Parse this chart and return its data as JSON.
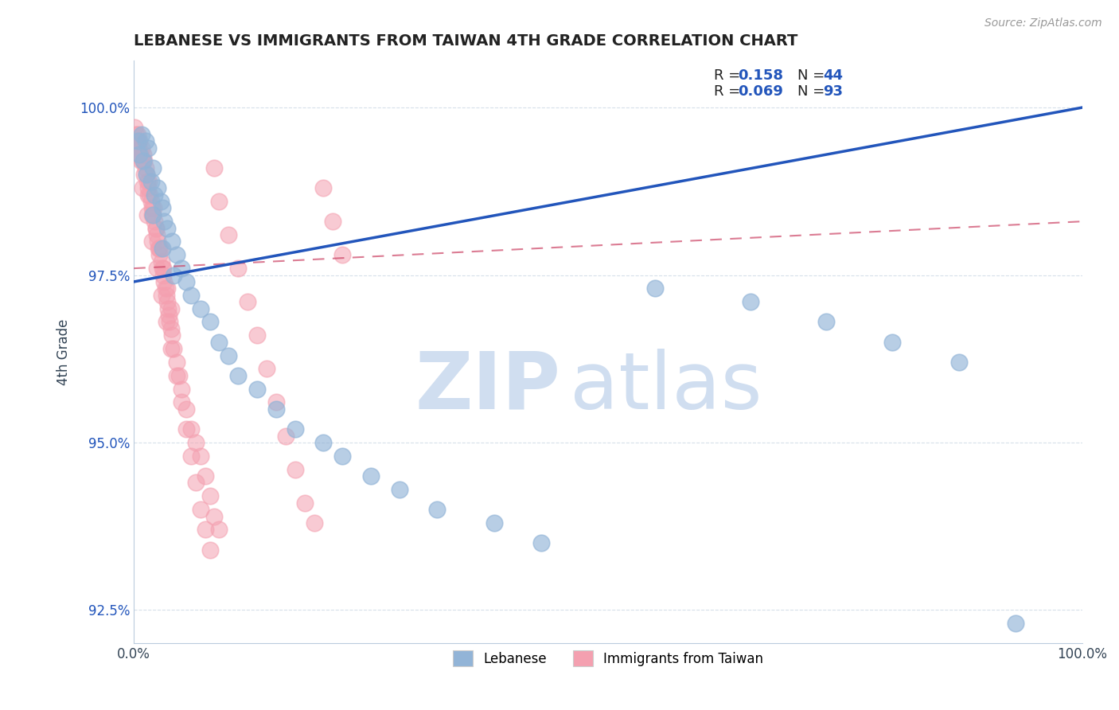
{
  "title": "LEBANESE VS IMMIGRANTS FROM TAIWAN 4TH GRADE CORRELATION CHART",
  "source_text": "Source: ZipAtlas.com",
  "ylabel": "4th Grade",
  "xlim": [
    0,
    100
  ],
  "ylim": [
    92.0,
    100.7
  ],
  "yticks": [
    92.5,
    95.0,
    97.5,
    100.0
  ],
  "xticks": [
    0,
    100
  ],
  "xticklabels": [
    "0.0%",
    "100.0%"
  ],
  "yticklabels": [
    "92.5%",
    "95.0%",
    "97.5%",
    "100.0%"
  ],
  "blue_color": "#92B4D7",
  "pink_color": "#F4A0B0",
  "trend_blue_color": "#2255BB",
  "trend_pink_color": "#CC4466",
  "watermark_zip": "ZIP",
  "watermark_atlas": "atlas",
  "watermark_color": "#D0DEF0",
  "blue_scatter_x": [
    0.5,
    0.8,
    1.0,
    1.2,
    1.5,
    1.8,
    2.0,
    2.2,
    2.5,
    2.8,
    3.0,
    3.2,
    3.5,
    4.0,
    4.5,
    5.0,
    5.5,
    6.0,
    7.0,
    8.0,
    9.0,
    10.0,
    11.0,
    13.0,
    15.0,
    17.0,
    20.0,
    22.0,
    25.0,
    28.0,
    32.0,
    38.0,
    43.0,
    55.0,
    65.0,
    73.0,
    80.0,
    87.0,
    93.0,
    0.6,
    1.3,
    2.0,
    3.0,
    4.2
  ],
  "blue_scatter_y": [
    99.5,
    99.6,
    99.2,
    99.5,
    99.4,
    98.9,
    99.1,
    98.7,
    98.8,
    98.6,
    98.5,
    98.3,
    98.2,
    98.0,
    97.8,
    97.6,
    97.4,
    97.2,
    97.0,
    96.8,
    96.5,
    96.3,
    96.0,
    95.8,
    95.5,
    95.2,
    95.0,
    94.8,
    94.5,
    94.3,
    94.0,
    93.8,
    93.5,
    97.3,
    97.1,
    96.8,
    96.5,
    96.2,
    92.3,
    99.3,
    99.0,
    98.4,
    97.9,
    97.5
  ],
  "pink_scatter_x": [
    0.1,
    0.2,
    0.3,
    0.4,
    0.5,
    0.6,
    0.7,
    0.8,
    0.9,
    1.0,
    1.1,
    1.2,
    1.3,
    1.4,
    1.5,
    1.6,
    1.7,
    1.8,
    1.9,
    2.0,
    2.1,
    2.2,
    2.3,
    2.4,
    2.5,
    2.6,
    2.7,
    2.8,
    2.9,
    3.0,
    3.1,
    3.2,
    3.3,
    3.4,
    3.5,
    3.6,
    3.7,
    3.8,
    3.9,
    4.0,
    4.2,
    4.5,
    4.8,
    5.0,
    5.5,
    6.0,
    6.5,
    7.0,
    7.5,
    8.0,
    8.5,
    9.0,
    0.3,
    0.7,
    1.1,
    1.5,
    1.9,
    2.3,
    2.7,
    3.1,
    3.5,
    3.9,
    0.4,
    0.9,
    1.4,
    1.9,
    2.4,
    2.9,
    3.4,
    3.9,
    4.5,
    5.0,
    5.5,
    6.0,
    6.5,
    7.0,
    7.5,
    8.0,
    8.5,
    9.0,
    10.0,
    11.0,
    12.0,
    13.0,
    14.0,
    15.0,
    16.0,
    17.0,
    18.0,
    19.0,
    20.0,
    21.0,
    22.0
  ],
  "pink_scatter_y": [
    99.7,
    99.6,
    99.5,
    99.6,
    99.4,
    99.5,
    99.3,
    99.4,
    99.2,
    99.3,
    99.2,
    99.1,
    99.0,
    98.9,
    98.8,
    98.9,
    98.7,
    98.6,
    98.5,
    98.4,
    98.5,
    98.3,
    98.2,
    98.1,
    98.0,
    97.9,
    97.8,
    97.9,
    97.7,
    97.6,
    97.5,
    97.4,
    97.3,
    97.2,
    97.1,
    97.0,
    96.9,
    96.8,
    96.7,
    96.6,
    96.4,
    96.2,
    96.0,
    95.8,
    95.5,
    95.2,
    95.0,
    94.8,
    94.5,
    94.2,
    93.9,
    93.7,
    99.4,
    99.2,
    99.0,
    98.7,
    98.4,
    98.2,
    97.9,
    97.6,
    97.3,
    97.0,
    99.3,
    98.8,
    98.4,
    98.0,
    97.6,
    97.2,
    96.8,
    96.4,
    96.0,
    95.6,
    95.2,
    94.8,
    94.4,
    94.0,
    93.7,
    93.4,
    99.1,
    98.6,
    98.1,
    97.6,
    97.1,
    96.6,
    96.1,
    95.6,
    95.1,
    94.6,
    94.1,
    93.8,
    98.8,
    98.3,
    97.8
  ],
  "blue_trendline_x": [
    0,
    100
  ],
  "blue_trendline_y_start": 97.4,
  "blue_trendline_y_end": 100.0,
  "pink_trendline_y_start": 97.6,
  "pink_trendline_y_end": 98.3
}
